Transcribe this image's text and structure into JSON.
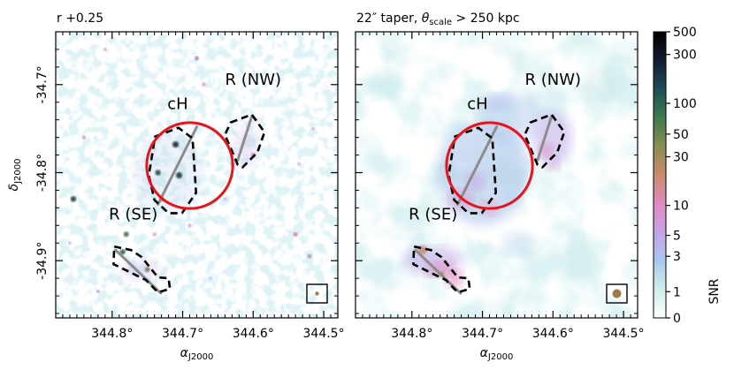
{
  "panels": [
    {
      "id": "left",
      "title": "r +0.25",
      "label_ch": "cH",
      "label_nw": "R (NW)",
      "label_se": "R (SE)",
      "style": "speckle"
    },
    {
      "id": "right",
      "title": "22″ taper, θscale > 250 kpc",
      "title_parts": {
        "prefix": "22″ taper, ",
        "theta": "θ",
        "sub": "scale",
        "suffix": " > 250 kpc"
      },
      "label_ch": "cH",
      "label_nw": "R (NW)",
      "label_se": "R (SE)",
      "style": "smooth"
    }
  ],
  "axes": {
    "xlabel": "α",
    "xlabel_sub": "J2000",
    "ylabel": "δ",
    "ylabel_sub": "J2000",
    "xticks": [
      {
        "value": 344.8,
        "label": "344.8°"
      },
      {
        "value": 344.7,
        "label": "344.7°"
      },
      {
        "value": 344.6,
        "label": "344.6°"
      },
      {
        "value": 344.5,
        "label": "344.5°"
      }
    ],
    "yticks": [
      {
        "value": -34.7,
        "label": "-34.7°"
      },
      {
        "value": -34.8,
        "label": "-34.8°"
      },
      {
        "value": -34.9,
        "label": "-34.9°"
      }
    ],
    "xlim": [
      344.88,
      344.48
    ],
    "ylim": [
      -34.965,
      -34.64
    ]
  },
  "regions": {
    "circle": {
      "ra": 344.69,
      "dec": -34.792,
      "radius_deg": 0.061,
      "color": "#e8141b"
    },
    "ch_polygon": [
      [
        344.739,
        -34.759
      ],
      [
        344.706,
        -34.749
      ],
      [
        344.686,
        -34.761
      ],
      [
        344.681,
        -34.823
      ],
      [
        344.701,
        -34.846
      ],
      [
        344.72,
        -34.846
      ],
      [
        344.74,
        -34.831
      ],
      [
        344.748,
        -34.803
      ]
    ],
    "nw_polygon": [
      [
        344.632,
        -34.743
      ],
      [
        344.602,
        -34.734
      ],
      [
        344.584,
        -34.754
      ],
      [
        344.594,
        -34.777
      ],
      [
        344.615,
        -34.794
      ],
      [
        344.622,
        -34.791
      ],
      [
        344.64,
        -34.757
      ]
    ],
    "se_polygon": [
      [
        344.797,
        -34.884
      ],
      [
        344.773,
        -34.888
      ],
      [
        344.758,
        -34.896
      ],
      [
        344.735,
        -34.919
      ],
      [
        344.72,
        -34.92
      ],
      [
        344.718,
        -34.932
      ],
      [
        344.735,
        -34.936
      ],
      [
        344.752,
        -34.922
      ],
      [
        344.798,
        -34.904
      ]
    ],
    "axis_line_main": [
      [
        344.735,
        -34.836
      ],
      [
        344.68,
        -34.748
      ]
    ],
    "axis_line_nw": [
      [
        344.622,
        -34.786
      ],
      [
        344.602,
        -34.736
      ]
    ],
    "axis_line_se": [
      [
        344.795,
        -34.888
      ],
      [
        344.731,
        -34.937
      ]
    ],
    "dashed_color": "#000000",
    "axis_line_color": "#8c8c8c"
  },
  "beam": {
    "left_size": "small",
    "right_size": "large",
    "fill": "#a07a45"
  },
  "colorbar": {
    "label": "SNR",
    "ticks": [
      {
        "value": 0,
        "label": "0"
      },
      {
        "value": 1,
        "label": "1"
      },
      {
        "value": 3,
        "label": "3"
      },
      {
        "value": 5,
        "label": "5"
      },
      {
        "value": 10,
        "label": "10"
      },
      {
        "value": 30,
        "label": "30"
      },
      {
        "value": 50,
        "label": "50"
      },
      {
        "value": 100,
        "label": "100"
      },
      {
        "value": 300,
        "label": "300"
      },
      {
        "value": 500,
        "label": "500"
      }
    ],
    "range": [
      0,
      500
    ],
    "scale": "asinh-like",
    "colors": [
      "#ffffff",
      "#cfeeea",
      "#a9c8ec",
      "#c5a3e6",
      "#e08ac0",
      "#c98a6e",
      "#8a8e52",
      "#3f7a4f",
      "#1e4d55",
      "#141a30",
      "#000000"
    ]
  }
}
